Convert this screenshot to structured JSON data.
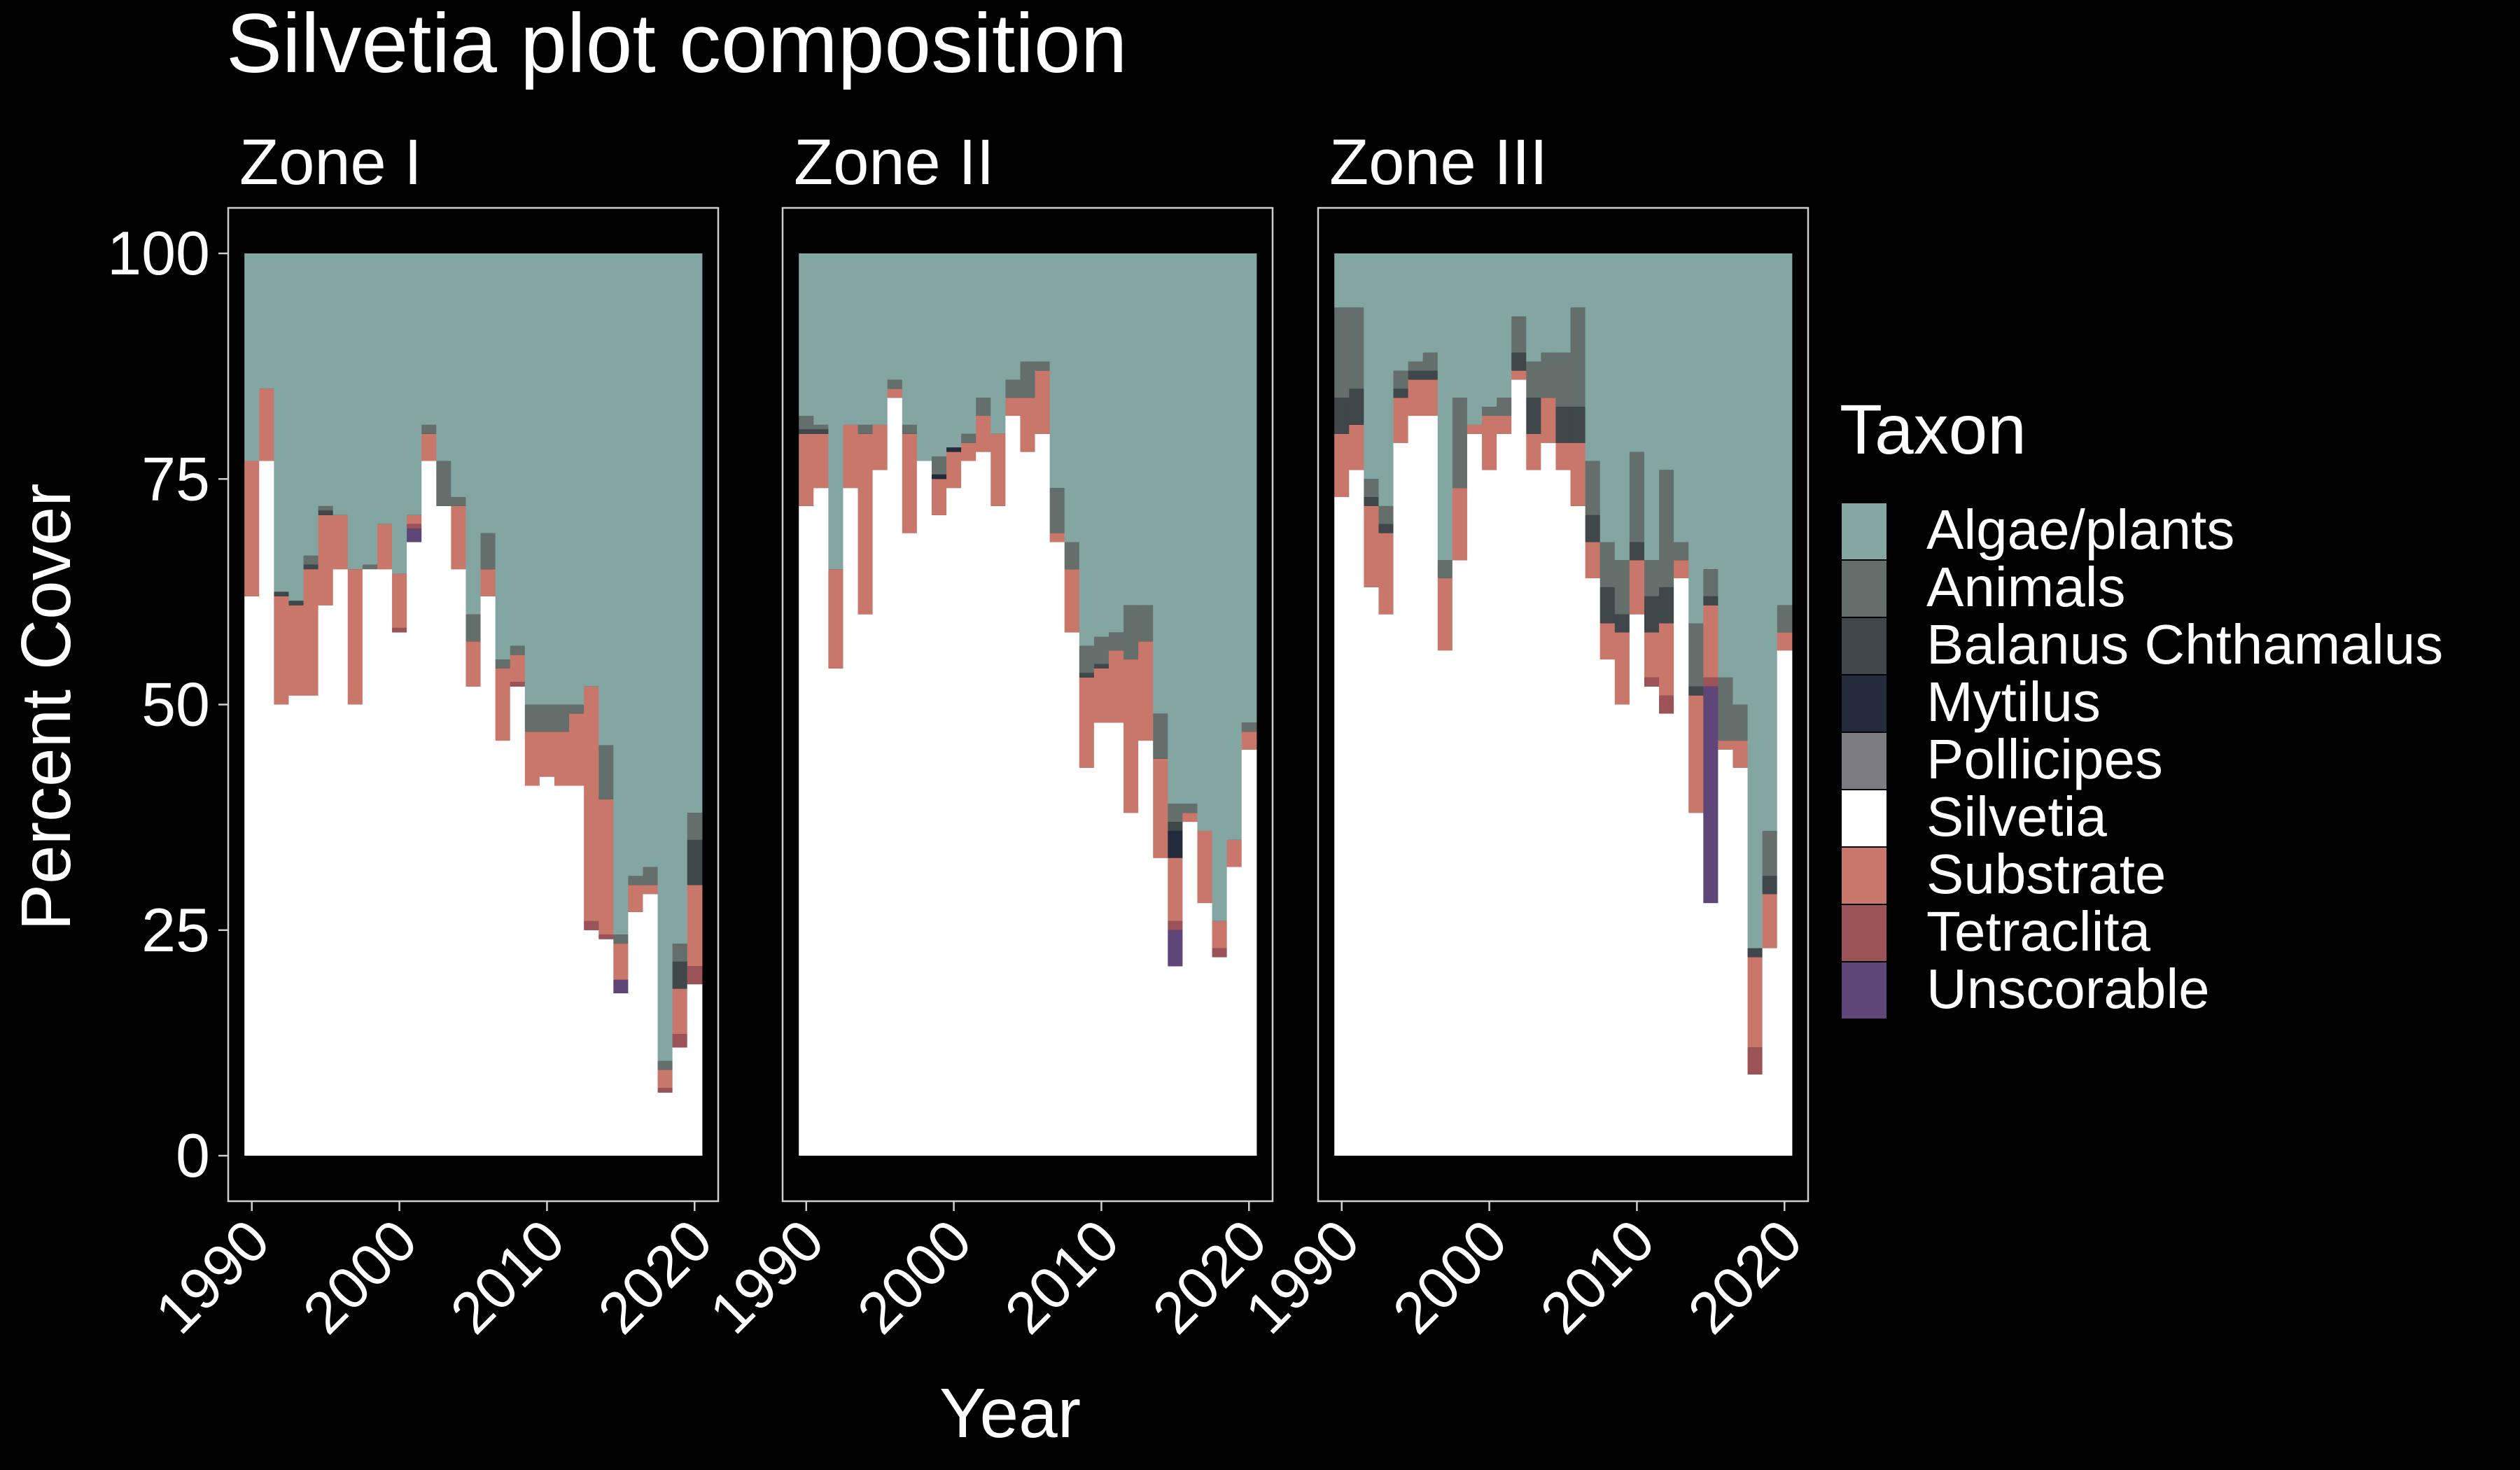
{
  "chart_data": {
    "type": "bar",
    "stacked": true,
    "title": "Silvetia plot composition",
    "xlabel": "Year",
    "ylabel": "Percent Cover",
    "ylim": [
      0,
      100
    ],
    "yticks": [
      0,
      25,
      50,
      75,
      100
    ],
    "xticks": [
      1990,
      2000,
      2010,
      2020
    ],
    "xlim": [
      1988.4,
      2021.6
    ],
    "grid": false,
    "legend": {
      "title": "Taxon",
      "position": "right"
    },
    "taxa": [
      {
        "name": "Algae/plants",
        "color": "#84A6A3"
      },
      {
        "name": "Animals",
        "color": "#646F6C"
      },
      {
        "name": "Balanus Chthamalus",
        "color": "#3F474B"
      },
      {
        "name": "Mytilus",
        "color": "#222A3C"
      },
      {
        "name": "Pollicipes",
        "color": "#7E7C83"
      },
      {
        "name": "Silvetia",
        "color": "#FFFFFF"
      },
      {
        "name": "Substrate",
        "color": "#C8776A"
      },
      {
        "name": "Tetraclita",
        "color": "#9B5358"
      },
      {
        "name": "Unscorable",
        "color": "#5E4679"
      }
    ],
    "stack_order": [
      "Silvetia",
      "Unscorable",
      "Tetraclita",
      "Substrate",
      "Pollicipes",
      "Mytilus",
      "Balanus Chthamalus",
      "Animals",
      "Algae/plants"
    ],
    "panels": [
      {
        "zone": "Zone I",
        "years": [
          1990,
          1991,
          1992,
          1993,
          1994,
          1995,
          1996,
          1997,
          1998,
          1999,
          2000,
          2001,
          2002,
          2003,
          2004,
          2005,
          2006,
          2007,
          2008,
          2009,
          2010,
          2011,
          2012,
          2013,
          2014,
          2015,
          2016,
          2017,
          2018,
          2019,
          2020
        ],
        "series": {
          "Silvetia": [
            62,
            77,
            50,
            51,
            51,
            61,
            65,
            50,
            65,
            65,
            58,
            68,
            77,
            72,
            65,
            52,
            62,
            46,
            52,
            41,
            42,
            41,
            41,
            25,
            24,
            18,
            27,
            29,
            7,
            12,
            19
          ],
          "Unscorable": [
            0,
            0,
            0,
            0,
            0,
            0,
            0,
            0,
            0,
            0,
            0,
            1.5,
            0,
            0,
            0,
            0,
            0,
            0,
            0,
            0,
            0,
            0,
            0,
            0,
            0,
            1.5,
            0,
            0,
            0,
            0,
            0
          ],
          "Tetraclita": [
            0,
            0,
            0,
            0,
            0,
            0,
            0,
            0,
            0,
            0,
            0.5,
            0.5,
            0,
            0,
            0,
            0,
            0,
            0,
            0.5,
            0,
            0,
            0,
            0,
            1,
            0.5,
            0,
            0,
            0,
            0.5,
            1.5,
            2
          ],
          "Substrate": [
            15,
            8,
            12,
            10,
            14,
            10,
            6,
            15,
            0,
            5,
            6,
            1,
            3,
            0,
            7,
            5,
            3,
            8,
            3,
            6,
            5,
            6,
            8,
            26,
            15,
            4,
            3,
            1,
            2,
            5,
            9
          ],
          "Pollicipes": [
            0,
            0,
            0,
            0,
            0,
            0,
            0,
            0,
            0,
            0,
            0,
            0,
            0,
            0,
            0,
            0,
            0,
            0,
            0,
            0,
            0,
            0,
            0,
            0,
            0,
            0,
            0,
            0,
            0,
            0,
            0
          ],
          "Mytilus": [
            0,
            0,
            0,
            0,
            0,
            0,
            0,
            0,
            0,
            0,
            0,
            0,
            0,
            0,
            0,
            0,
            0,
            0,
            0,
            0,
            0,
            0,
            0,
            0,
            0,
            0,
            0,
            0,
            0,
            0,
            0
          ],
          "Balanus Chthamalus": [
            0,
            0,
            0.5,
            0.5,
            0.5,
            0.5,
            0,
            0,
            0,
            0,
            0,
            0,
            0,
            0,
            0,
            0,
            0,
            0,
            0,
            0,
            0,
            0,
            0,
            0,
            0,
            0,
            0,
            0,
            0,
            3,
            5
          ],
          "Animals": [
            0,
            0,
            0,
            0,
            1,
            0.5,
            0,
            0,
            0.5,
            0,
            0,
            0,
            1,
            5,
            1,
            3,
            4,
            1,
            1,
            3,
            3,
            3,
            1,
            0,
            6,
            1,
            1,
            2,
            1,
            2,
            3
          ],
          "Algae/plants": [
            23,
            15,
            37.5,
            38.5,
            33.5,
            28,
            29,
            35,
            34.5,
            30,
            35.5,
            29,
            19,
            23,
            27,
            40,
            31,
            45,
            43.5,
            50,
            50,
            50,
            50,
            48,
            54.5,
            75.5,
            69,
            68,
            89.5,
            76.5,
            62
          ]
        }
      },
      {
        "zone": "Zone II",
        "years": [
          1990,
          1991,
          1992,
          1993,
          1994,
          1995,
          1996,
          1997,
          1998,
          1999,
          2000,
          2001,
          2002,
          2003,
          2004,
          2005,
          2006,
          2007,
          2008,
          2009,
          2010,
          2011,
          2012,
          2013,
          2014,
          2015,
          2016,
          2017,
          2018,
          2019,
          2020
        ],
        "series": {
          "Silvetia": [
            72,
            74,
            54,
            74,
            60,
            76,
            84,
            69,
            77,
            71,
            74,
            77,
            78,
            72,
            82,
            78,
            80,
            68,
            58,
            43,
            48,
            48,
            38,
            46,
            33,
            21,
            37,
            28,
            22,
            32,
            45
          ],
          "Unscorable": [
            0,
            0,
            0,
            0,
            0,
            0,
            0,
            0,
            0,
            0,
            0,
            0,
            0,
            0,
            0,
            0,
            0,
            0,
            0,
            0,
            0,
            0,
            0,
            0,
            0,
            4,
            0,
            0,
            0,
            0,
            0
          ],
          "Tetraclita": [
            0,
            0,
            0,
            0,
            0,
            0,
            0,
            0,
            0,
            0,
            0,
            0,
            0,
            0,
            0,
            0,
            0,
            0,
            0,
            0,
            0,
            0,
            0,
            0,
            0,
            1,
            0,
            0,
            1,
            0,
            0
          ],
          "Substrate": [
            8,
            6,
            11,
            7,
            20,
            5,
            1,
            11,
            0,
            4,
            4,
            2,
            4,
            8,
            2,
            6,
            7,
            1,
            7,
            10,
            6,
            8,
            17,
            11,
            11,
            7,
            1,
            8,
            3,
            3,
            2
          ],
          "Pollicipes": [
            0,
            0,
            0,
            0,
            0,
            0,
            0,
            0,
            0,
            0,
            0,
            0,
            0,
            0,
            0,
            0,
            0,
            0,
            0,
            0,
            0,
            0,
            0,
            0,
            0,
            0,
            0,
            0,
            0,
            0,
            0
          ],
          "Mytilus": [
            0,
            0,
            0,
            0,
            0,
            0,
            0,
            0,
            0,
            0.5,
            0.5,
            0,
            0,
            0,
            0,
            0,
            0,
            0,
            0,
            0,
            0,
            0,
            0,
            0,
            0,
            3,
            0,
            0,
            0,
            0,
            0
          ],
          "Balanus Chthamalus": [
            0.5,
            0.5,
            0,
            0,
            0,
            0,
            0,
            0,
            0,
            0,
            0,
            0,
            0,
            0,
            0,
            0,
            0,
            0,
            0,
            0.5,
            0.5,
            0,
            0,
            0,
            0,
            1,
            0,
            0,
            0,
            0,
            0
          ],
          "Animals": [
            1.5,
            0.5,
            0,
            0,
            1,
            0,
            1,
            1,
            0,
            2,
            0,
            1,
            2,
            0,
            2,
            4,
            1,
            5,
            3,
            3,
            3,
            2,
            6,
            4,
            5,
            2,
            1,
            0,
            0,
            0,
            1
          ],
          "Algae/plants": [
            18,
            19,
            35,
            19,
            19,
            19,
            14,
            19,
            23,
            22.5,
            21.5,
            20,
            16,
            20,
            14,
            12,
            12,
            26,
            32,
            43.5,
            42.5,
            42,
            39,
            39,
            51,
            61,
            61,
            64,
            74,
            65,
            52
          ]
        }
      },
      {
        "zone": "Zone III",
        "years": [
          1990,
          1991,
          1992,
          1993,
          1994,
          1995,
          1996,
          1997,
          1998,
          1999,
          2000,
          2001,
          2002,
          2003,
          2004,
          2005,
          2006,
          2007,
          2008,
          2009,
          2010,
          2011,
          2012,
          2013,
          2014,
          2015,
          2016,
          2017,
          2018,
          2019,
          2020
        ],
        "series": {
          "Silvetia": [
            73,
            76,
            63,
            60,
            79,
            82,
            82,
            56,
            66,
            80,
            76,
            80,
            86,
            76,
            79,
            76,
            72,
            64,
            55,
            50,
            60,
            52,
            49,
            64,
            38,
            28,
            45,
            43,
            9,
            23,
            56
          ],
          "Unscorable": [
            0,
            0,
            0,
            0,
            0,
            0,
            0,
            0,
            0,
            0,
            0,
            0,
            0,
            0,
            0,
            0,
            0,
            0,
            0,
            0,
            0,
            0,
            0,
            0,
            0,
            24,
            0,
            0,
            0,
            0,
            0
          ],
          "Tetraclita": [
            0,
            0,
            0,
            0,
            0,
            0,
            0,
            0,
            0,
            0,
            0,
            0,
            0,
            0,
            0,
            0,
            0,
            0,
            0,
            0,
            0,
            1,
            2,
            0,
            0,
            1,
            0,
            0,
            3,
            0,
            0
          ],
          "Substrate": [
            7,
            5,
            9,
            9,
            5,
            4,
            4,
            8,
            8,
            1,
            6,
            2,
            1,
            4,
            5,
            3,
            7,
            4,
            4,
            8,
            6,
            5,
            8,
            2,
            13,
            8,
            1,
            3,
            10,
            6,
            2
          ],
          "Pollicipes": [
            0,
            0,
            0,
            0,
            0,
            0,
            0,
            0,
            0,
            0,
            0,
            0,
            0,
            0,
            0,
            0,
            0,
            0,
            0,
            0,
            0,
            0,
            0,
            0,
            0,
            0,
            0,
            0,
            0,
            0,
            0
          ],
          "Mytilus": [
            0,
            0,
            0,
            0,
            0,
            0,
            0,
            0,
            0,
            0,
            0,
            0,
            0,
            0,
            0,
            0,
            0,
            0,
            0,
            0,
            0,
            0,
            0,
            0,
            0,
            0,
            0,
            0,
            0,
            0,
            0
          ],
          "Balanus Chthamalus": [
            4,
            4,
            1,
            1,
            1,
            1,
            1,
            0,
            0,
            0,
            0,
            0,
            2,
            4,
            0,
            4,
            4,
            3,
            4,
            2,
            2,
            4,
            4,
            0,
            1,
            1,
            0,
            0,
            1,
            2,
            0
          ],
          "Animals": [
            10,
            9,
            2,
            2,
            2,
            1,
            2,
            2,
            10,
            0,
            1,
            2,
            4,
            4,
            5,
            6,
            11,
            6,
            5,
            6,
            10,
            4,
            13,
            2,
            7,
            3,
            7,
            4,
            0,
            5,
            3
          ],
          "Algae/plants": [
            6,
            6,
            25,
            28,
            13,
            12,
            11,
            34,
            16,
            19,
            17,
            16,
            7,
            12,
            11,
            11,
            6,
            23,
            32,
            34,
            22,
            34,
            24,
            32,
            41,
            35,
            47,
            50,
            77,
            64,
            39
          ]
        }
      }
    ]
  }
}
